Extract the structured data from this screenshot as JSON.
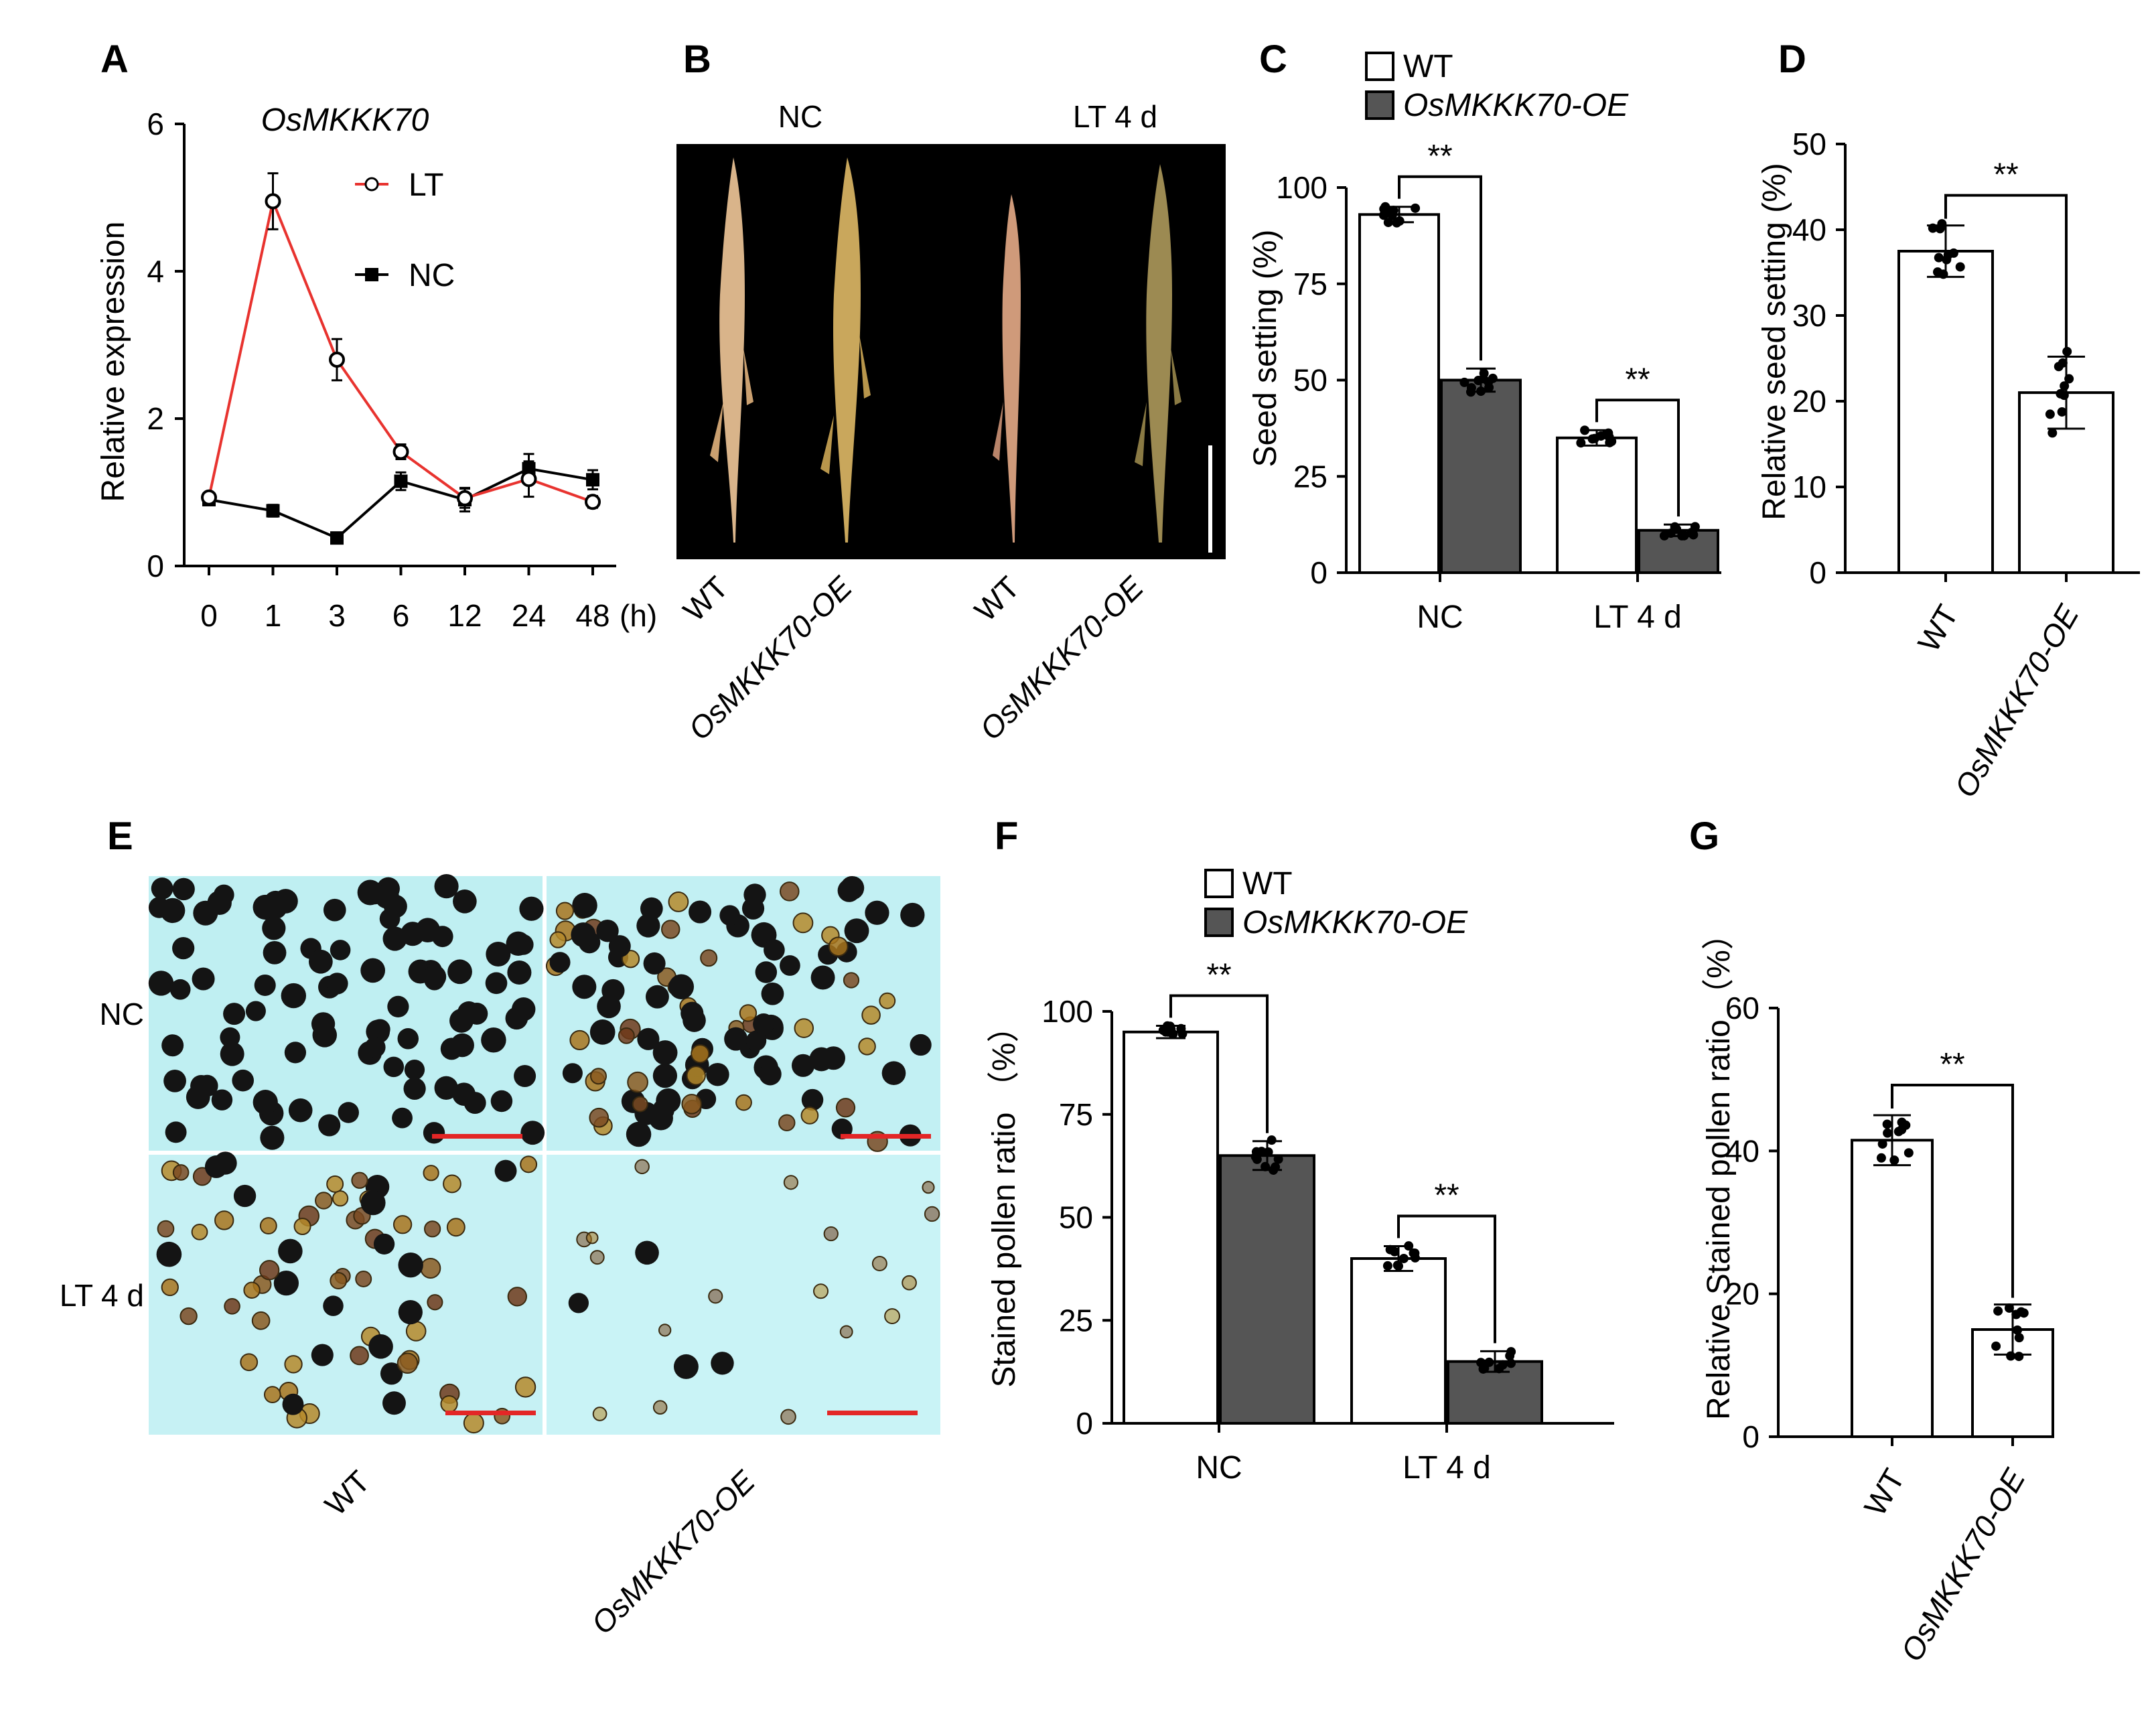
{
  "panels": {
    "A": "A",
    "B": "B",
    "C": "C",
    "D": "D",
    "E": "E",
    "F": "F",
    "G": "G"
  },
  "chart_data": [
    {
      "id": "A",
      "type": "line",
      "title": "OsMKKK70",
      "ylabel": "Relative expression",
      "xlabel": "(h)",
      "ylim": [
        0,
        6
      ],
      "yticks": [
        "0",
        "2",
        "4",
        "6"
      ],
      "categories": [
        "0",
        "1",
        "3",
        "6",
        "12",
        "24",
        "48"
      ],
      "legend_position": "top-right",
      "series": [
        {
          "name": "LT",
          "color": "#e8332f",
          "marker": "open-circle",
          "values": [
            0.93,
            4.95,
            2.8,
            1.55,
            0.92,
            1.18,
            0.87
          ],
          "errors": [
            0.06,
            0.38,
            0.28,
            0.1,
            0.13,
            0.24,
            0.08
          ]
        },
        {
          "name": "NC",
          "color": "#000000",
          "marker": "filled-square",
          "values": [
            0.9,
            0.75,
            0.38,
            1.15,
            0.9,
            1.32,
            1.17
          ],
          "errors": [
            0.06,
            0.08,
            0.06,
            0.12,
            0.16,
            0.2,
            0.13
          ]
        }
      ]
    },
    {
      "id": "C",
      "type": "bar",
      "ylabel": "Seed setting (%)",
      "ylim": [
        0,
        100
      ],
      "yticks": [
        "0",
        "25",
        "50",
        "75",
        "100"
      ],
      "categories": [
        "NC",
        "LT 4 d"
      ],
      "legend_position": "top",
      "series": [
        {
          "name": "WT",
          "fill": "#ffffff",
          "values": [
            93,
            35
          ],
          "errors": [
            2,
            2
          ]
        },
        {
          "name": "OsMKKK70-OE",
          "fill": "#555555",
          "values": [
            50,
            11
          ],
          "errors": [
            3,
            1.5
          ]
        }
      ],
      "significance": [
        "**",
        "**"
      ]
    },
    {
      "id": "D",
      "type": "bar",
      "ylabel": "Relative seed setting (%)",
      "ylim": [
        0,
        50
      ],
      "yticks": [
        "0",
        "10",
        "20",
        "30",
        "40",
        "50"
      ],
      "categories": [
        "WT",
        "OsMKKK70-OE"
      ],
      "values": [
        37.5,
        21
      ],
      "errors": [
        3,
        4.2
      ],
      "significance": "**"
    },
    {
      "id": "F",
      "type": "bar",
      "ylabel": "Stained pollen ratio （%）",
      "ylim": [
        0,
        100
      ],
      "yticks": [
        "0",
        "25",
        "50",
        "75",
        "100"
      ],
      "categories": [
        "NC",
        "LT 4 d"
      ],
      "legend_position": "top",
      "series": [
        {
          "name": "WT",
          "fill": "#ffffff",
          "values": [
            95,
            40
          ],
          "errors": [
            1.5,
            3
          ]
        },
        {
          "name": "OsMKKK70-OE",
          "fill": "#555555",
          "values": [
            65,
            15
          ],
          "errors": [
            3.5,
            2.5
          ]
        }
      ],
      "significance": [
        "**",
        "**"
      ]
    },
    {
      "id": "G",
      "type": "bar",
      "ylabel": "Relative Stained pollen ratio （%）",
      "ylim": [
        0,
        60
      ],
      "yticks": [
        "0",
        "20",
        "40",
        "60"
      ],
      "categories": [
        "WT",
        "OsMKKK70-OE"
      ],
      "values": [
        41.5,
        15
      ],
      "errors": [
        3.5,
        3.5
      ],
      "significance": "**"
    }
  ],
  "photos": {
    "B": {
      "top_labels": [
        "NC",
        "LT 4 d"
      ],
      "bottom_labels": [
        "WT",
        "OsMKKK70-OE",
        "WT",
        "OsMKKK70-OE"
      ]
    },
    "E": {
      "row_labels": [
        "NC",
        "LT 4 d"
      ],
      "col_labels": [
        "WT",
        "OsMKKK70-OE"
      ]
    }
  }
}
